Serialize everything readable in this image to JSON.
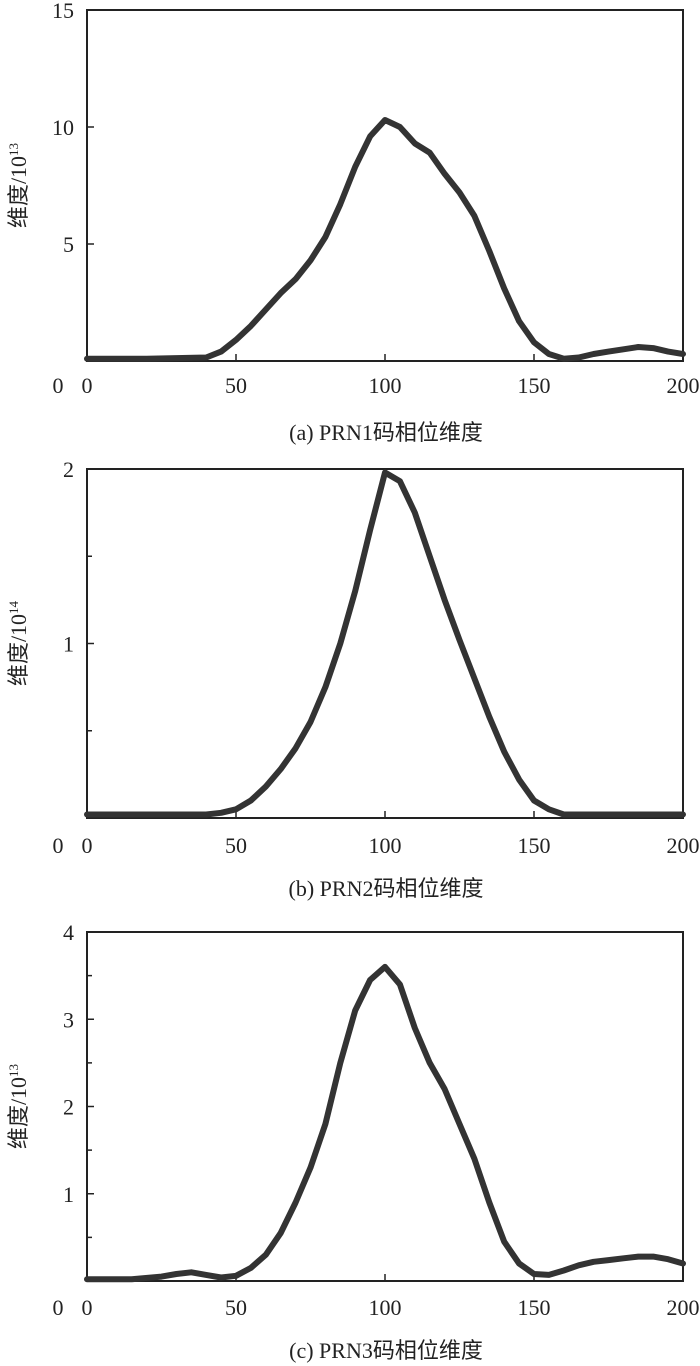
{
  "chart_data": [
    {
      "type": "line",
      "caption": "(a) PRN1码相位维度",
      "ylabel": "维度/10",
      "ylabel_exp": "13",
      "xlim": [
        0,
        200
      ],
      "ylim": [
        0,
        15
      ],
      "x_ticks": [
        0,
        50,
        100,
        150,
        200
      ],
      "y_ticks": [
        5,
        10,
        15
      ],
      "series": [
        {
          "x": [
            0,
            20,
            40,
            45,
            50,
            55,
            60,
            65,
            70,
            75,
            80,
            85,
            90,
            95,
            100,
            105,
            110,
            115,
            120,
            125,
            130,
            135,
            140,
            145,
            150,
            155,
            160,
            165,
            170,
            175,
            180,
            185,
            190,
            195,
            200
          ],
          "y": [
            0.1,
            0.1,
            0.15,
            0.4,
            0.9,
            1.5,
            2.2,
            2.9,
            3.5,
            4.3,
            5.3,
            6.7,
            8.3,
            9.6,
            10.3,
            10.0,
            9.3,
            8.9,
            8.0,
            7.2,
            6.2,
            4.7,
            3.1,
            1.7,
            0.8,
            0.3,
            0.1,
            0.15,
            0.3,
            0.4,
            0.5,
            0.6,
            0.55,
            0.4,
            0.3
          ]
        }
      ]
    },
    {
      "type": "line",
      "caption": "(b) PRN2码相位维度",
      "ylabel": "维度/10",
      "ylabel_exp": "14",
      "xlim": [
        0,
        200
      ],
      "ylim": [
        0,
        2
      ],
      "x_ticks": [
        0,
        50,
        100,
        150,
        200
      ],
      "y_ticks": [
        1,
        2
      ],
      "series": [
        {
          "x": [
            0,
            20,
            40,
            45,
            50,
            55,
            60,
            65,
            70,
            75,
            80,
            85,
            90,
            95,
            100,
            105,
            110,
            115,
            120,
            125,
            130,
            135,
            140,
            145,
            150,
            155,
            160,
            165,
            170,
            180,
            200
          ],
          "y": [
            0.02,
            0.02,
            0.02,
            0.03,
            0.05,
            0.1,
            0.18,
            0.28,
            0.4,
            0.55,
            0.75,
            1.0,
            1.3,
            1.65,
            1.98,
            1.93,
            1.75,
            1.5,
            1.25,
            1.02,
            0.8,
            0.58,
            0.38,
            0.22,
            0.1,
            0.05,
            0.02,
            0.02,
            0.02,
            0.02,
            0.02
          ]
        }
      ]
    },
    {
      "type": "line",
      "caption": "(c) PRN3码相位维度",
      "ylabel": "维度/10",
      "ylabel_exp": "13",
      "xlim": [
        0,
        200
      ],
      "ylim": [
        0,
        4
      ],
      "x_ticks": [
        0,
        50,
        100,
        150,
        200
      ],
      "y_ticks": [
        1,
        2,
        3,
        4
      ],
      "series": [
        {
          "x": [
            0,
            15,
            25,
            30,
            35,
            40,
            45,
            50,
            55,
            60,
            65,
            70,
            75,
            80,
            85,
            90,
            95,
            100,
            105,
            110,
            115,
            120,
            125,
            130,
            135,
            140,
            145,
            150,
            155,
            160,
            165,
            170,
            175,
            180,
            185,
            190,
            195,
            200
          ],
          "y": [
            0.02,
            0.02,
            0.05,
            0.08,
            0.1,
            0.07,
            0.04,
            0.06,
            0.15,
            0.3,
            0.55,
            0.9,
            1.3,
            1.8,
            2.5,
            3.1,
            3.45,
            3.6,
            3.4,
            2.9,
            2.5,
            2.2,
            1.8,
            1.4,
            0.9,
            0.45,
            0.2,
            0.08,
            0.07,
            0.12,
            0.18,
            0.22,
            0.24,
            0.26,
            0.28,
            0.28,
            0.25,
            0.2
          ]
        }
      ]
    }
  ]
}
